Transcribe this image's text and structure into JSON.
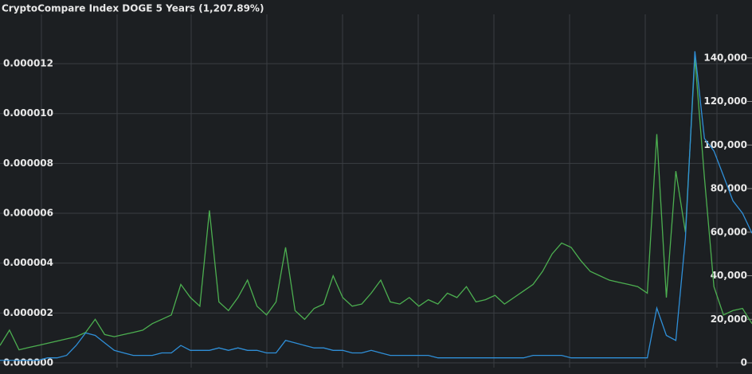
{
  "chart_data": {
    "type": "line",
    "title": "CryptoCompare Index DOGE 5 Years (1,207.89%)",
    "ylim": [
      0,
      1.398e-05
    ],
    "yticks": [
      {
        "value": 0,
        "label": "0.000000"
      },
      {
        "value": 2e-06,
        "label": "0.000002"
      },
      {
        "value": 4e-06,
        "label": "0.000004"
      },
      {
        "value": 6e-06,
        "label": "0.000006"
      },
      {
        "value": 8e-06,
        "label": "0.000008"
      },
      {
        "value": 1e-05,
        "label": "0.000010"
      },
      {
        "value": 1.2e-05,
        "label": "0.000012"
      }
    ],
    "y2lim": [
      0,
      160000
    ],
    "y2ticks": [
      0,
      {
        "value": 20000,
        "label": "20,000"
      },
      {
        "value": 40000,
        "label": "40,000"
      },
      {
        "value": 60000,
        "label": "60,000"
      },
      {
        "value": 80000,
        "label": "80,000"
      },
      {
        "value": 100000,
        "label": "100,000"
      },
      {
        "value": 120000,
        "label": "120,000"
      },
      {
        "value": 140000,
        "label": "140,000"
      }
    ],
    "grid": true,
    "series": [
      {
        "color": "#4caf50",
        "axis": "y2",
        "values": [
          8000,
          15000,
          6000,
          7000,
          8000,
          9000,
          10000,
          11000,
          12000,
          14000,
          20000,
          13000,
          12000,
          13000,
          14000,
          15000,
          18000,
          20000,
          22000,
          36000,
          30000,
          26000,
          70000,
          28000,
          24000,
          30000,
          38000,
          26000,
          22000,
          28000,
          53000,
          24000,
          20000,
          25000,
          27000,
          40000,
          30000,
          26000,
          27000,
          32000,
          38000,
          28000,
          27000,
          30000,
          26000,
          29000,
          27000,
          32000,
          30000,
          35000,
          28000,
          29000,
          31000,
          27000,
          30000,
          33000,
          36000,
          42000,
          50000,
          55000,
          53000,
          47000,
          42000,
          40000,
          38000,
          37000,
          36000,
          35000,
          32000,
          105000,
          30000,
          88000,
          60000,
          140000,
          85000,
          35000,
          22000,
          24000,
          25000,
          18000
        ]
      },
      {
        "color": "#2f8fd8",
        "axis": "y",
        "values": [
          1e-07,
          1e-07,
          1e-07,
          1e-07,
          1e-07,
          2e-07,
          2e-07,
          3e-07,
          7e-07,
          1.2e-06,
          1.1e-06,
          8e-07,
          5e-07,
          4e-07,
          3e-07,
          3e-07,
          3e-07,
          4e-07,
          4e-07,
          7e-07,
          5e-07,
          5e-07,
          5e-07,
          6e-07,
          5e-07,
          6e-07,
          5e-07,
          5e-07,
          4e-07,
          4e-07,
          9e-07,
          8e-07,
          7e-07,
          6e-07,
          6e-07,
          5e-07,
          5e-07,
          4e-07,
          4e-07,
          5e-07,
          4e-07,
          3e-07,
          3e-07,
          3e-07,
          3e-07,
          3e-07,
          2e-07,
          2e-07,
          2e-07,
          2e-07,
          2e-07,
          2e-07,
          2e-07,
          2e-07,
          2e-07,
          2e-07,
          3e-07,
          3e-07,
          3e-07,
          3e-07,
          2e-07,
          2e-07,
          2e-07,
          2e-07,
          2e-07,
          2e-07,
          2e-07,
          2e-07,
          2e-07,
          2.2e-06,
          1.1e-06,
          9e-07,
          5e-06,
          1.25e-05,
          9e-06,
          8.5e-06,
          7.5e-06,
          6.5e-06,
          6e-06,
          5.2e-06
        ]
      }
    ]
  }
}
